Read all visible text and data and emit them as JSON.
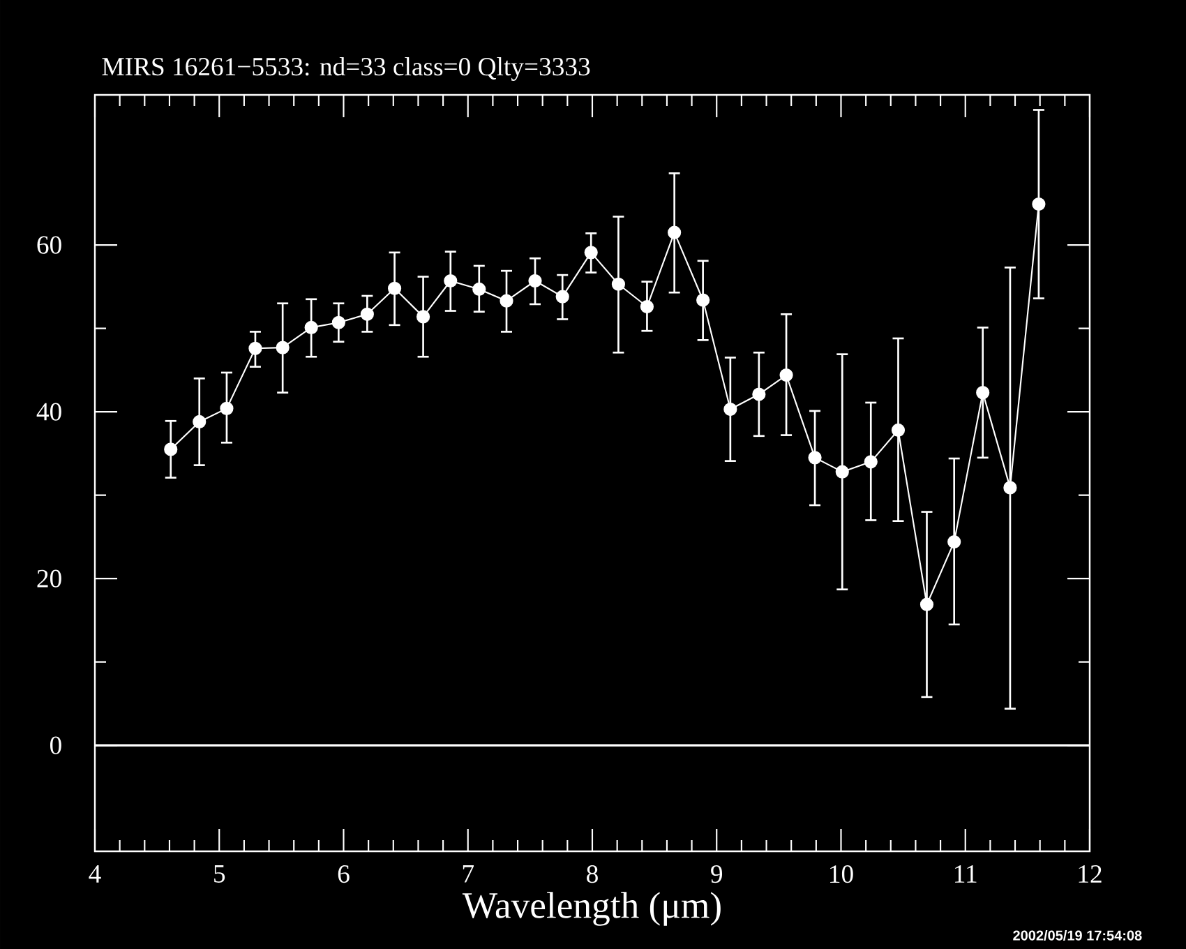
{
  "chart_data": {
    "type": "line",
    "title": "MIRS 16261−5533:     nd=33    class=0    Qlty=3333",
    "xlabel": "Wavelength (μm)",
    "x": [
      4.61,
      4.84,
      5.06,
      5.29,
      5.51,
      5.74,
      5.96,
      6.19,
      6.41,
      6.64,
      6.86,
      7.09,
      7.31,
      7.54,
      7.76,
      7.99,
      8.21,
      8.44,
      8.66,
      8.89,
      9.11,
      9.34,
      9.56,
      9.79,
      10.01,
      10.24,
      10.46,
      10.69,
      10.91,
      11.14,
      11.36,
      11.59
    ],
    "series": [
      {
        "color": "#ffffff",
        "values": [
          35.5,
          38.8,
          40.4,
          47.6,
          47.7,
          50.1,
          50.7,
          51.7,
          54.8,
          51.4,
          55.7,
          54.7,
          53.3,
          55.7,
          53.8,
          59.1,
          55.3,
          52.6,
          61.5,
          53.4,
          40.3,
          42.1,
          44.4,
          34.5,
          32.8,
          34.0,
          37.8,
          16.9,
          24.4,
          42.3,
          30.9,
          64.9
        ],
        "errors": [
          [
            32.1,
            38.9
          ],
          [
            33.6,
            44.0
          ],
          [
            36.3,
            44.7
          ],
          [
            45.4,
            49.6
          ],
          [
            42.3,
            53.0
          ],
          [
            46.6,
            53.5
          ],
          [
            48.4,
            53.0
          ],
          [
            49.6,
            53.9
          ],
          [
            50.4,
            59.1
          ],
          [
            46.6,
            56.2
          ],
          [
            52.1,
            59.2
          ],
          [
            52.0,
            57.5
          ],
          [
            49.6,
            56.9
          ],
          [
            52.9,
            58.4
          ],
          [
            51.1,
            56.4
          ],
          [
            56.7,
            61.4
          ],
          [
            47.1,
            63.4
          ],
          [
            49.7,
            55.6
          ],
          [
            54.3,
            68.6
          ],
          [
            48.6,
            58.1
          ],
          [
            34.1,
            46.5
          ],
          [
            37.1,
            47.1
          ],
          [
            37.2,
            51.7
          ],
          [
            28.8,
            40.1
          ],
          [
            18.7,
            46.9
          ],
          [
            27.0,
            41.1
          ],
          [
            26.9,
            48.8
          ],
          [
            5.8,
            28.0
          ],
          [
            14.5,
            34.4
          ],
          [
            34.5,
            50.1
          ],
          [
            4.4,
            57.3
          ],
          [
            53.6,
            76.2
          ]
        ]
      }
    ],
    "xlim": [
      4,
      12
    ],
    "ylim": [
      -12.7,
      78
    ],
    "xticks": [
      4,
      5,
      6,
      7,
      8,
      9,
      10,
      11,
      12
    ],
    "yticks": [
      0,
      20,
      40,
      60
    ],
    "ref_lines": [
      {
        "axis": "y",
        "value": 0,
        "color": "#ffffff"
      }
    ],
    "marker": "circle",
    "line_style": "solid",
    "grid": false,
    "annotations": [
      "2002/05/19 17:54:08"
    ]
  }
}
